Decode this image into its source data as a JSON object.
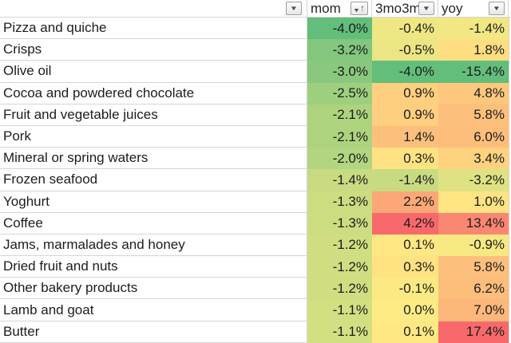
{
  "header": {
    "columns": [
      {
        "label": "",
        "filter_icon": "filter-dropdown"
      },
      {
        "label": "mom",
        "filter_icon": "filter-sorted-ascending"
      },
      {
        "label": "3mo3m",
        "filter_icon": "filter-dropdown"
      },
      {
        "label": "yoy",
        "filter_icon": "filter-dropdown"
      }
    ]
  },
  "rows": [
    {
      "name": "Pizza and quiche",
      "values": [
        "-4.0%",
        "-0.4%",
        "-1.4%"
      ]
    },
    {
      "name": "Crisps",
      "values": [
        "-3.2%",
        "-0.5%",
        "1.8%"
      ]
    },
    {
      "name": "Olive oil",
      "values": [
        "-3.0%",
        "-4.0%",
        "-15.4%"
      ]
    },
    {
      "name": "Cocoa and powdered chocolate",
      "values": [
        "-2.5%",
        "0.9%",
        "4.8%"
      ]
    },
    {
      "name": "Fruit and vegetable juices",
      "values": [
        "-2.1%",
        "0.9%",
        "5.8%"
      ]
    },
    {
      "name": "Pork",
      "values": [
        "-2.1%",
        "1.4%",
        "6.0%"
      ]
    },
    {
      "name": "Mineral or spring waters",
      "values": [
        "-2.0%",
        "0.3%",
        "3.4%"
      ]
    },
    {
      "name": "Frozen seafood",
      "values": [
        "-1.4%",
        "-1.4%",
        "-3.2%"
      ]
    },
    {
      "name": "Yoghurt",
      "values": [
        "-1.3%",
        "2.2%",
        "1.0%"
      ]
    },
    {
      "name": "Coffee",
      "values": [
        "-1.3%",
        "4.2%",
        "13.4%"
      ]
    },
    {
      "name": "Jams, marmalades and honey",
      "values": [
        "-1.2%",
        "0.1%",
        "-0.9%"
      ]
    },
    {
      "name": "Dried fruit and nuts",
      "values": [
        "-1.2%",
        "0.3%",
        "5.8%"
      ]
    },
    {
      "name": "Other bakery products",
      "values": [
        "-1.2%",
        "-0.1%",
        "6.2%"
      ]
    },
    {
      "name": "Lamb and goat",
      "values": [
        "-1.1%",
        "0.0%",
        "7.0%"
      ]
    },
    {
      "name": "Butter",
      "values": [
        "-1.1%",
        "0.1%",
        "17.4%"
      ]
    }
  ],
  "color_scale": {
    "green": "#63BE7B",
    "yellow": "#FFEB84",
    "red": "#F8696B",
    "midpoint_value": 0,
    "scope": "per-column"
  },
  "colors": {
    "gridline": "#D5D5D5",
    "header_text": "#262626",
    "cell_text": "#1C1C1C",
    "button_border": "#9C9C9C",
    "button_glyph": "#4D4D4D"
  }
}
